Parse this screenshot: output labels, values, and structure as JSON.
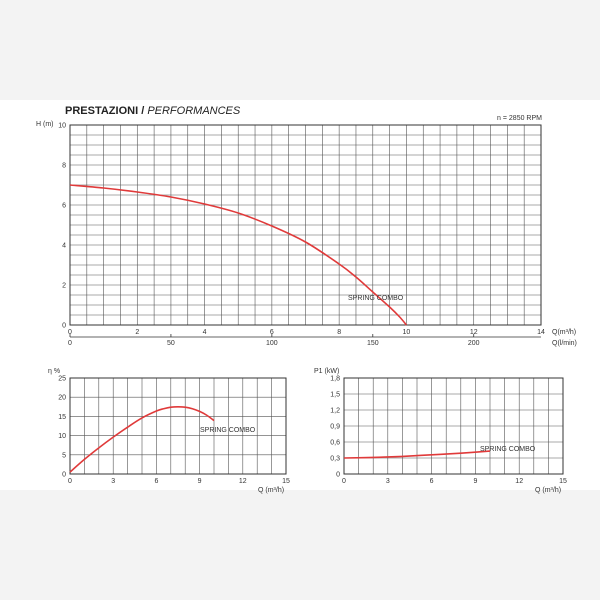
{
  "header": {
    "title_main": "PRESTAZIONI /",
    "title_sub": "PERFORMANCES",
    "rpm": "n = 2850 RPM"
  },
  "colors": {
    "curve": "#e03a3a",
    "grid": "#555555",
    "background": "#ffffff"
  },
  "chart_data": [
    {
      "type": "line",
      "title": "",
      "ylabel": "H (m)",
      "xlabel": "Q(m³/h)",
      "xlabel_secondary": "Q(l/min)",
      "xlim": [
        0,
        14
      ],
      "ylim": [
        0,
        10
      ],
      "xticks": [
        "0",
        "2",
        "4",
        "6",
        "8",
        "10",
        "12",
        "14"
      ],
      "yticks": [
        "0",
        "2",
        "4",
        "6",
        "8",
        "10"
      ],
      "secondary_xticks": [
        {
          "label": "0",
          "value_m3h": 0
        },
        {
          "label": "50",
          "value_m3h": 3
        },
        {
          "label": "100",
          "value_m3h": 6
        },
        {
          "label": "150",
          "value_m3h": 9
        },
        {
          "label": "200",
          "value_m3h": 12
        }
      ],
      "grid": true,
      "series": [
        {
          "name": "SPRING COMBO",
          "x": [
            0,
            1,
            2,
            3,
            4,
            5,
            6,
            7,
            8,
            8.5,
            9,
            9.5,
            9.8,
            10.0
          ],
          "y": [
            7.0,
            6.85,
            6.65,
            6.4,
            6.05,
            5.6,
            4.95,
            4.15,
            3.05,
            2.4,
            1.65,
            0.9,
            0.4,
            0.0
          ]
        }
      ]
    },
    {
      "type": "line",
      "title": "",
      "ylabel": "η %",
      "xlabel": "Q (m³/h)",
      "xlim": [
        0,
        15
      ],
      "ylim": [
        0,
        25
      ],
      "xticks": [
        "0",
        "3",
        "6",
        "9",
        "12",
        "15"
      ],
      "yticks": [
        "0",
        "5",
        "10",
        "15",
        "20",
        "25"
      ],
      "grid": true,
      "series": [
        {
          "name": "SPRING COMBO",
          "x": [
            0,
            1,
            2,
            3,
            4,
            5,
            6,
            6.5,
            7,
            7.5,
            8,
            8.5,
            9,
            9.5,
            10
          ],
          "y": [
            0.5,
            3.8,
            6.8,
            9.6,
            12.2,
            14.6,
            16.4,
            17.0,
            17.4,
            17.5,
            17.4,
            17.0,
            16.3,
            15.3,
            13.9
          ]
        }
      ]
    },
    {
      "type": "line",
      "title": "",
      "ylabel": "P1 (kW)",
      "xlabel": "Q (m³/h)",
      "xlim": [
        0,
        15
      ],
      "ylim": [
        0,
        1.8
      ],
      "xticks": [
        "0",
        "3",
        "6",
        "9",
        "12",
        "15"
      ],
      "yticks": [
        "0",
        "0,3",
        "0,6",
        "0,9",
        "1,2",
        "1,5",
        "1,8"
      ],
      "grid": true,
      "series": [
        {
          "name": "SPRING COMBO",
          "x": [
            0,
            2,
            4,
            6,
            8,
            10
          ],
          "y": [
            0.3,
            0.31,
            0.33,
            0.36,
            0.39,
            0.43
          ]
        }
      ]
    }
  ]
}
